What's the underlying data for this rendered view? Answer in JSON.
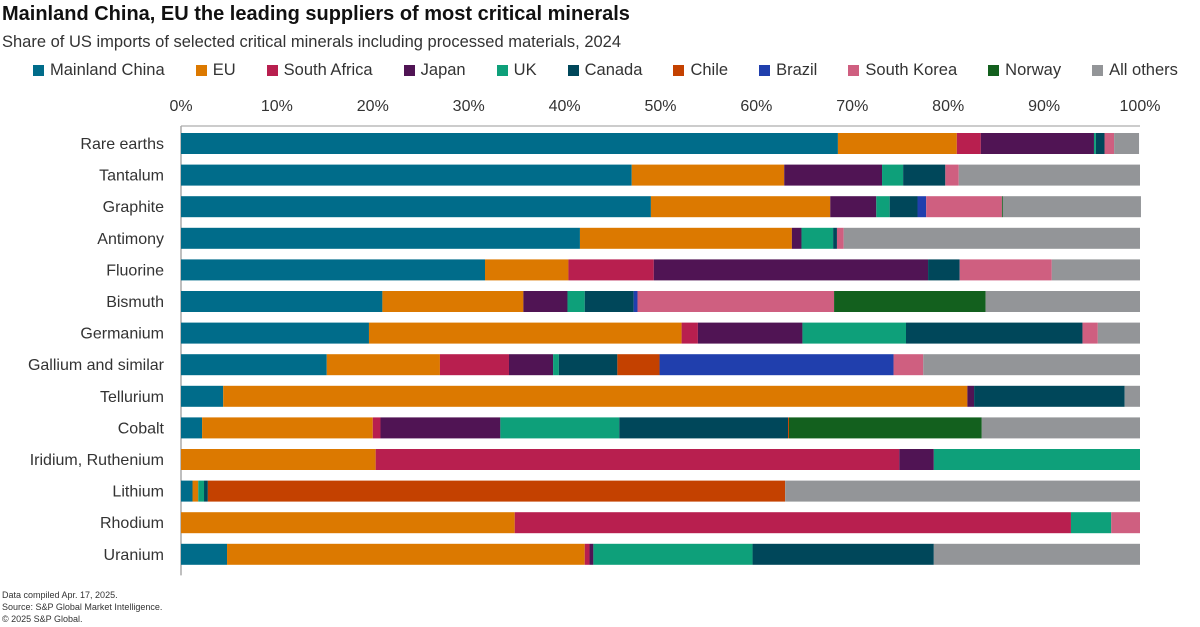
{
  "chart_data": {
    "type": "bar",
    "orientation": "horizontal",
    "stacked": true,
    "title": "Mainland China, EU the leading suppliers of most critical minerals",
    "subtitle": "Share of US imports of selected critical minerals including processed materials, 2024",
    "xlim": [
      0,
      100
    ],
    "xticks": [
      "0%",
      "10%",
      "20%",
      "30%",
      "40%",
      "50%",
      "60%",
      "70%",
      "80%",
      "90%",
      "100%"
    ],
    "grid": false,
    "legend_position": "top",
    "categories": [
      "Rare earths",
      "Tantalum",
      "Graphite",
      "Antimony",
      "Fluorine",
      "Bismuth",
      "Germanium",
      "Gallium and similar",
      "Tellurium",
      "Cobalt",
      "Iridium, Ruthenium",
      "Lithium",
      "Rhodium",
      "Uranium"
    ],
    "series": [
      {
        "name": "Mainland China",
        "color": "#006c8a",
        "values": [
          68.5,
          47.0,
          49.0,
          41.6,
          31.7,
          21.0,
          19.6,
          15.2,
          4.4,
          2.2,
          0,
          1.2,
          0,
          4.8
        ]
      },
      {
        "name": "EU",
        "color": "#dc7900",
        "values": [
          12.4,
          15.9,
          18.7,
          22.1,
          8.7,
          14.7,
          32.6,
          11.8,
          77.6,
          17.8,
          20.3,
          0.6,
          34.8,
          37.3
        ]
      },
      {
        "name": "South Africa",
        "color": "#b81f4f",
        "values": [
          2.5,
          0,
          0,
          0,
          8.9,
          0,
          1.7,
          7.2,
          0,
          0.8,
          54.6,
          0,
          58.0,
          0.5
        ]
      },
      {
        "name": "Japan",
        "color": "#501454",
        "values": [
          11.8,
          10.2,
          4.8,
          1.0,
          28.6,
          4.6,
          10.9,
          4.6,
          0.7,
          12.5,
          3.6,
          0,
          0,
          0.4
        ]
      },
      {
        "name": "UK",
        "color": "#0ea07a",
        "values": [
          0.2,
          2.2,
          1.4,
          3.3,
          0,
          1.8,
          10.8,
          0.6,
          0,
          12.4,
          21.5,
          0.6,
          4.2,
          16.6
        ]
      },
      {
        "name": "Canada",
        "color": "#00475a",
        "values": [
          0.9,
          4.4,
          2.9,
          0.4,
          3.3,
          5.1,
          18.4,
          6.1,
          15.7,
          17.6,
          0,
          0.4,
          0,
          18.9
        ]
      },
      {
        "name": "Chile",
        "color": "#c44100",
        "values": [
          0,
          0,
          0,
          0,
          0,
          0,
          0,
          4.4,
          0,
          0.1,
          0,
          60.2,
          0,
          0
        ]
      },
      {
        "name": "Brazil",
        "color": "#203fad",
        "values": [
          0,
          0,
          0.9,
          0,
          0,
          0.4,
          0,
          24.4,
          0,
          0,
          0,
          0,
          0,
          0
        ]
      },
      {
        "name": "South Korea",
        "color": "#cf5f80",
        "values": [
          1.0,
          1.4,
          7.9,
          0.7,
          9.6,
          20.5,
          1.6,
          3.1,
          0,
          0,
          0,
          0,
          3.0,
          0
        ]
      },
      {
        "name": "Norway",
        "color": "#13601e",
        "values": [
          0,
          0,
          0.1,
          0,
          0,
          15.8,
          0,
          0,
          0,
          20.1,
          0,
          0,
          0,
          0
        ]
      },
      {
        "name": "All others",
        "color": "#939598",
        "values": [
          2.6,
          18.9,
          14.4,
          30.9,
          9.2,
          16.1,
          4.4,
          22.6,
          1.6,
          16.5,
          0,
          37.0,
          0,
          21.5
        ]
      }
    ]
  },
  "footer": {
    "line1": "Data compiled Apr. 17, 2025.",
    "line2": "Source: S&P Global Market Intelligence.",
    "line3": "© 2025 S&P Global."
  }
}
